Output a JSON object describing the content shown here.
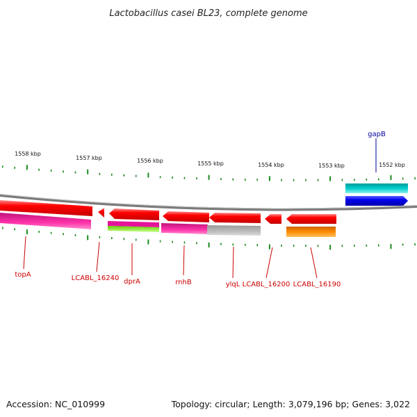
{
  "title": "Lactobacillus casei BL23, complete genome",
  "footer": {
    "accession": "Accession: NC_010999",
    "summary": "Topology: circular; Length: 3,079,196 bp; Genes: 3,022"
  },
  "colors": {
    "ticks": "#1a8a1a",
    "backbone": "#8c8c8c",
    "label_red": "#cc0000",
    "label_blue": "#000099"
  },
  "scale_labels": [
    "1558 kbp",
    "1557 kbp",
    "1556 kbp",
    "1555 kbp",
    "1554 kbp",
    "1553 kbp",
    "1552 kbp"
  ],
  "gene_labels": [
    {
      "text": "gapB",
      "color": "#000099"
    },
    {
      "text": "topA",
      "color": "#cc0000"
    },
    {
      "text": "LCABL_16240",
      "color": "#cc0000"
    },
    {
      "text": "dprA",
      "color": "#cc0000"
    },
    {
      "text": "rnhB",
      "color": "#cc0000"
    },
    {
      "text": "ylqL",
      "color": "#cc0000"
    },
    {
      "text": "LCABL_16200",
      "color": "#cc0000"
    },
    {
      "text": "LCABL_16190",
      "color": "#cc0000"
    }
  ]
}
